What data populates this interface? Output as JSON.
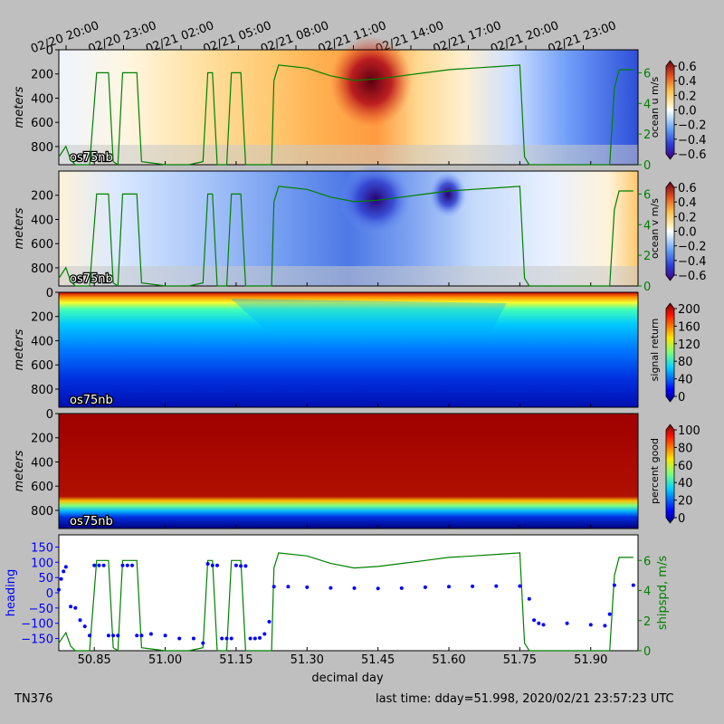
{
  "footer": {
    "cruise_id": "TN376",
    "last_time": "last time: dday=51.998,  2020/02/21 23:57:23 UTC"
  },
  "chart_data": {
    "type": "heatmap",
    "top_time_ticks": [
      "02/20 20:00",
      "02/20 23:00",
      "02/21 02:00",
      "02/21 05:00",
      "02/21 08:00",
      "02/21 11:00",
      "02/21 14:00",
      "02/21 17:00",
      "02/21 20:00",
      "02/21 23:00"
    ],
    "x_range": [
      50.775,
      52.0
    ],
    "xlabel": "decimal day",
    "x_ticks": [
      "50.85",
      "51.00",
      "51.15",
      "51.30",
      "51.45",
      "51.60",
      "51.75",
      "51.90"
    ],
    "x_tick_values": [
      50.85,
      51.0,
      51.15,
      51.3,
      51.45,
      51.6,
      51.75,
      51.9
    ],
    "panels": [
      {
        "kind": "ocean_u",
        "ylabel": "meters",
        "y_ticks": [
          "0",
          "200",
          "400",
          "600",
          "800"
        ],
        "y_range": [
          0,
          950
        ],
        "tag": "os75nb",
        "colorbar_label": "ocean u m/s",
        "colorbar_ticks": [
          "0.6",
          "0.4",
          "0.2",
          "0.0",
          "−0.2",
          "−0.4",
          "−0.6"
        ],
        "colormap": "diverging",
        "clim": [
          -0.6,
          0.6
        ],
        "right_ticks": [
          "0",
          "2",
          "4",
          "6"
        ]
      },
      {
        "kind": "ocean_v",
        "ylabel": "meters",
        "y_ticks": [
          "200",
          "400",
          "600",
          "800"
        ],
        "y_range": [
          0,
          950
        ],
        "tag": "os75nb",
        "colorbar_label": "ocean v m/s",
        "colorbar_ticks": [
          "0.6",
          "0.4",
          "0.2",
          "0.0",
          "−0.2",
          "−0.4",
          "−0.6"
        ],
        "colormap": "diverging",
        "clim": [
          -0.6,
          0.6
        ],
        "right_ticks": [
          "0",
          "2",
          "4",
          "6"
        ]
      },
      {
        "kind": "signal",
        "ylabel": "meters",
        "y_ticks": [
          "0",
          "200",
          "400",
          "600",
          "800"
        ],
        "y_range": [
          0,
          950
        ],
        "tag": "os75nb",
        "colorbar_label": "signal return",
        "colorbar_ticks": [
          "200",
          "160",
          "120",
          "80",
          "40",
          "0"
        ],
        "colormap": "jet",
        "clim": [
          0,
          200
        ]
      },
      {
        "kind": "pg",
        "ylabel": "meters",
        "y_ticks": [
          "0",
          "200",
          "400",
          "600",
          "800"
        ],
        "y_range": [
          0,
          950
        ],
        "tag": "os75nb",
        "colorbar_label": "percent good",
        "colorbar_ticks": [
          "100",
          "80",
          "60",
          "40",
          "20",
          "0"
        ],
        "colormap": "jet",
        "clim": [
          0,
          100
        ]
      }
    ],
    "heading_panel": {
      "ylabel": "heading",
      "y_ticks": [
        "150",
        "100",
        "50",
        "0",
        "−50",
        "−100",
        "−150"
      ],
      "y_tick_values": [
        150,
        100,
        50,
        0,
        -50,
        -100,
        -150
      ],
      "y_range": [
        -190,
        190
      ],
      "ylabel_right": "shipspd, m/s",
      "right_ticks": [
        "0",
        "2",
        "4",
        "6"
      ],
      "right_tick_values": [
        0,
        2,
        4,
        6
      ],
      "right_range": [
        0,
        7.7
      ],
      "heading_color": "#0000ff",
      "speed_color": "#008000"
    },
    "speed_series": {
      "name": "shipspd",
      "x": [
        50.775,
        50.79,
        50.8,
        50.81,
        50.83,
        50.84,
        50.855,
        50.87,
        50.88,
        50.89,
        50.9,
        50.91,
        50.93,
        50.94,
        50.95,
        51.0,
        51.05,
        51.08,
        51.09,
        51.1,
        51.11,
        51.12,
        51.13,
        51.14,
        51.155,
        51.16,
        51.17,
        51.18,
        51.19,
        51.225,
        51.23,
        51.24,
        51.3,
        51.35,
        51.4,
        51.45,
        51.5,
        51.55,
        51.6,
        51.65,
        51.7,
        51.75,
        51.76,
        51.77,
        51.8,
        51.85,
        51.9,
        51.94,
        51.95,
        51.96,
        51.99
      ],
      "y": [
        0.5,
        1.2,
        0.3,
        0,
        0,
        0,
        6,
        6,
        6,
        0.2,
        0,
        6,
        6,
        6,
        0.2,
        0,
        0,
        0.2,
        6,
        6,
        0,
        0,
        0,
        6,
        6,
        6,
        0,
        0,
        0,
        0,
        5.5,
        6.5,
        6.3,
        5.8,
        5.5,
        5.6,
        5.8,
        6.0,
        6.2,
        6.3,
        6.4,
        6.5,
        0.5,
        0,
        0,
        0,
        0,
        0,
        5,
        6.2,
        6.2
      ]
    },
    "heading_series": {
      "name": "heading",
      "x": [
        50.775,
        50.78,
        50.785,
        50.79,
        50.8,
        50.81,
        50.82,
        50.83,
        50.84,
        50.85,
        50.86,
        50.87,
        50.88,
        50.89,
        50.9,
        50.91,
        50.92,
        50.93,
        50.94,
        50.95,
        50.97,
        51.0,
        51.03,
        51.06,
        51.08,
        51.09,
        51.1,
        51.11,
        51.12,
        51.13,
        51.14,
        51.15,
        51.16,
        51.17,
        51.18,
        51.19,
        51.2,
        51.21,
        51.22,
        51.23,
        51.26,
        51.3,
        51.35,
        51.4,
        51.45,
        51.5,
        51.55,
        51.6,
        51.65,
        51.7,
        51.75,
        51.77,
        51.78,
        51.79,
        51.8,
        51.85,
        51.9,
        51.93,
        51.94,
        51.95,
        51.99
      ],
      "y": [
        10,
        45,
        70,
        85,
        -45,
        -50,
        -90,
        -110,
        -140,
        90,
        90,
        90,
        -140,
        -140,
        -140,
        90,
        90,
        90,
        -140,
        -140,
        -135,
        -140,
        -150,
        -150,
        -165,
        95,
        90,
        90,
        -150,
        -150,
        -150,
        90,
        88,
        88,
        -150,
        -150,
        -148,
        -135,
        -95,
        20,
        20,
        18,
        16,
        15,
        14,
        15,
        18,
        20,
        21,
        22,
        22,
        -20,
        -90,
        -100,
        -105,
        -100,
        -105,
        -108,
        -70,
        25,
        25
      ]
    }
  }
}
